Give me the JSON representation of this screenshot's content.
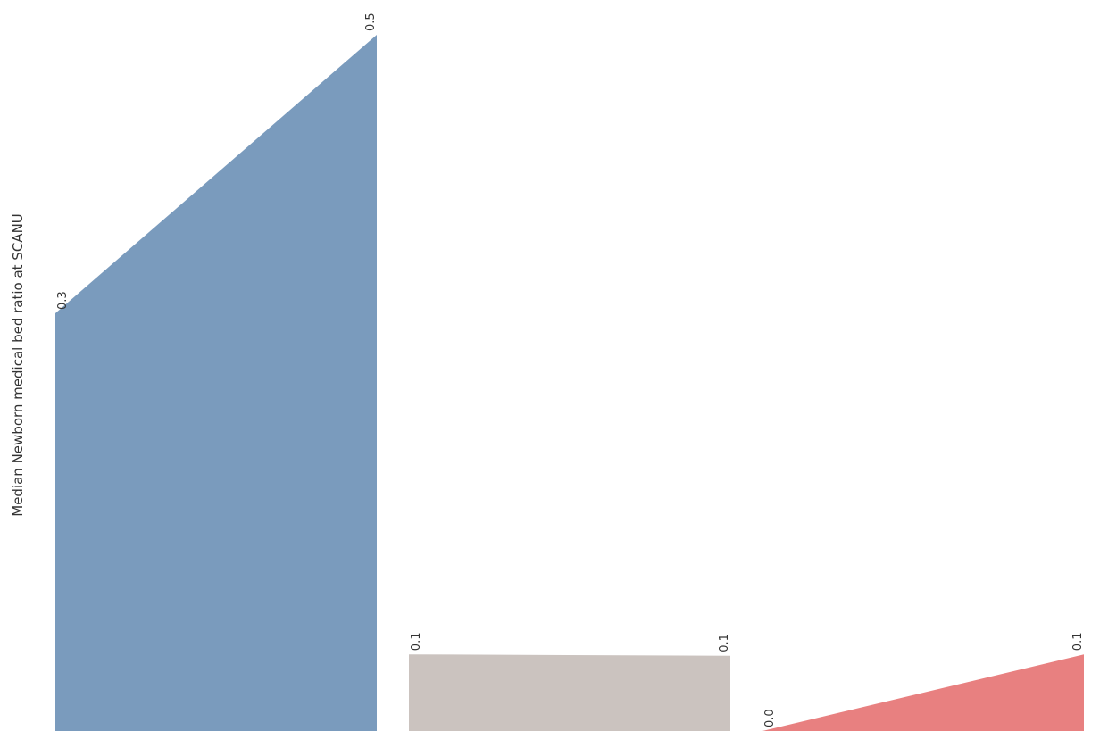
{
  "chart_data": {
    "type": "area",
    "ylabel": "Median Newborn medical bed ratio at SCANU",
    "xlabel": "",
    "ylim": [
      0,
      0.5
    ],
    "grid": false,
    "legend": "none",
    "panels": [
      {
        "color": "#7a9bbd",
        "values": [
          0.3,
          0.5
        ],
        "labels": [
          "0.3",
          "0.5"
        ]
      },
      {
        "color": "#cbc3bf",
        "values": [
          0.055,
          0.054
        ],
        "labels": [
          "0.1",
          "0.1"
        ]
      },
      {
        "color": "#e88080",
        "values": [
          0.0,
          0.055
        ],
        "labels": [
          "0.0",
          "0.1"
        ]
      }
    ]
  }
}
